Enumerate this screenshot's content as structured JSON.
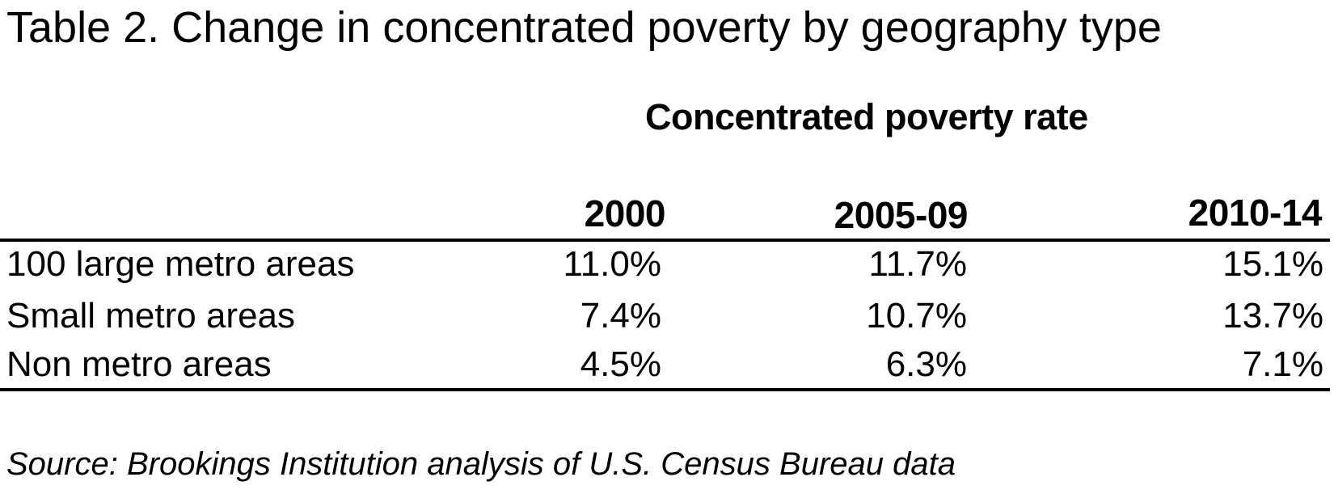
{
  "table": {
    "title": "Table 2. Change in concentrated poverty by geography type",
    "group_header": "Concentrated poverty rate",
    "columns": [
      "2000",
      "2005-09",
      "2010-14"
    ],
    "rows": [
      {
        "label": "100 large metro areas",
        "values": [
          "11.0%",
          "11.7%",
          "15.1%"
        ]
      },
      {
        "label": "Small metro areas",
        "values": [
          "7.4%",
          "10.7%",
          "13.7%"
        ]
      },
      {
        "label": "Non metro areas",
        "values": [
          "4.5%",
          "6.3%",
          "7.1%"
        ]
      }
    ],
    "source": "Source: Brookings Institution analysis of U.S. Census Bureau data"
  },
  "colors": {
    "text": "#000000",
    "background": "#ffffff",
    "rule": "#000000"
  },
  "chart_data": {
    "type": "table",
    "title": "Table 2. Change in concentrated poverty by geography type",
    "group_header": "Concentrated poverty rate",
    "categories": [
      "2000",
      "2005-09",
      "2010-14"
    ],
    "series": [
      {
        "name": "100 large metro areas",
        "values": [
          11.0,
          11.7,
          15.1
        ]
      },
      {
        "name": "Small metro areas",
        "values": [
          7.4,
          10.7,
          13.7
        ]
      },
      {
        "name": "Non metro areas",
        "values": [
          4.5,
          6.3,
          7.1
        ]
      }
    ],
    "unit": "percent",
    "legend_position": "none",
    "grid": false,
    "source": "Source: Brookings Institution analysis of U.S. Census Bureau data"
  }
}
